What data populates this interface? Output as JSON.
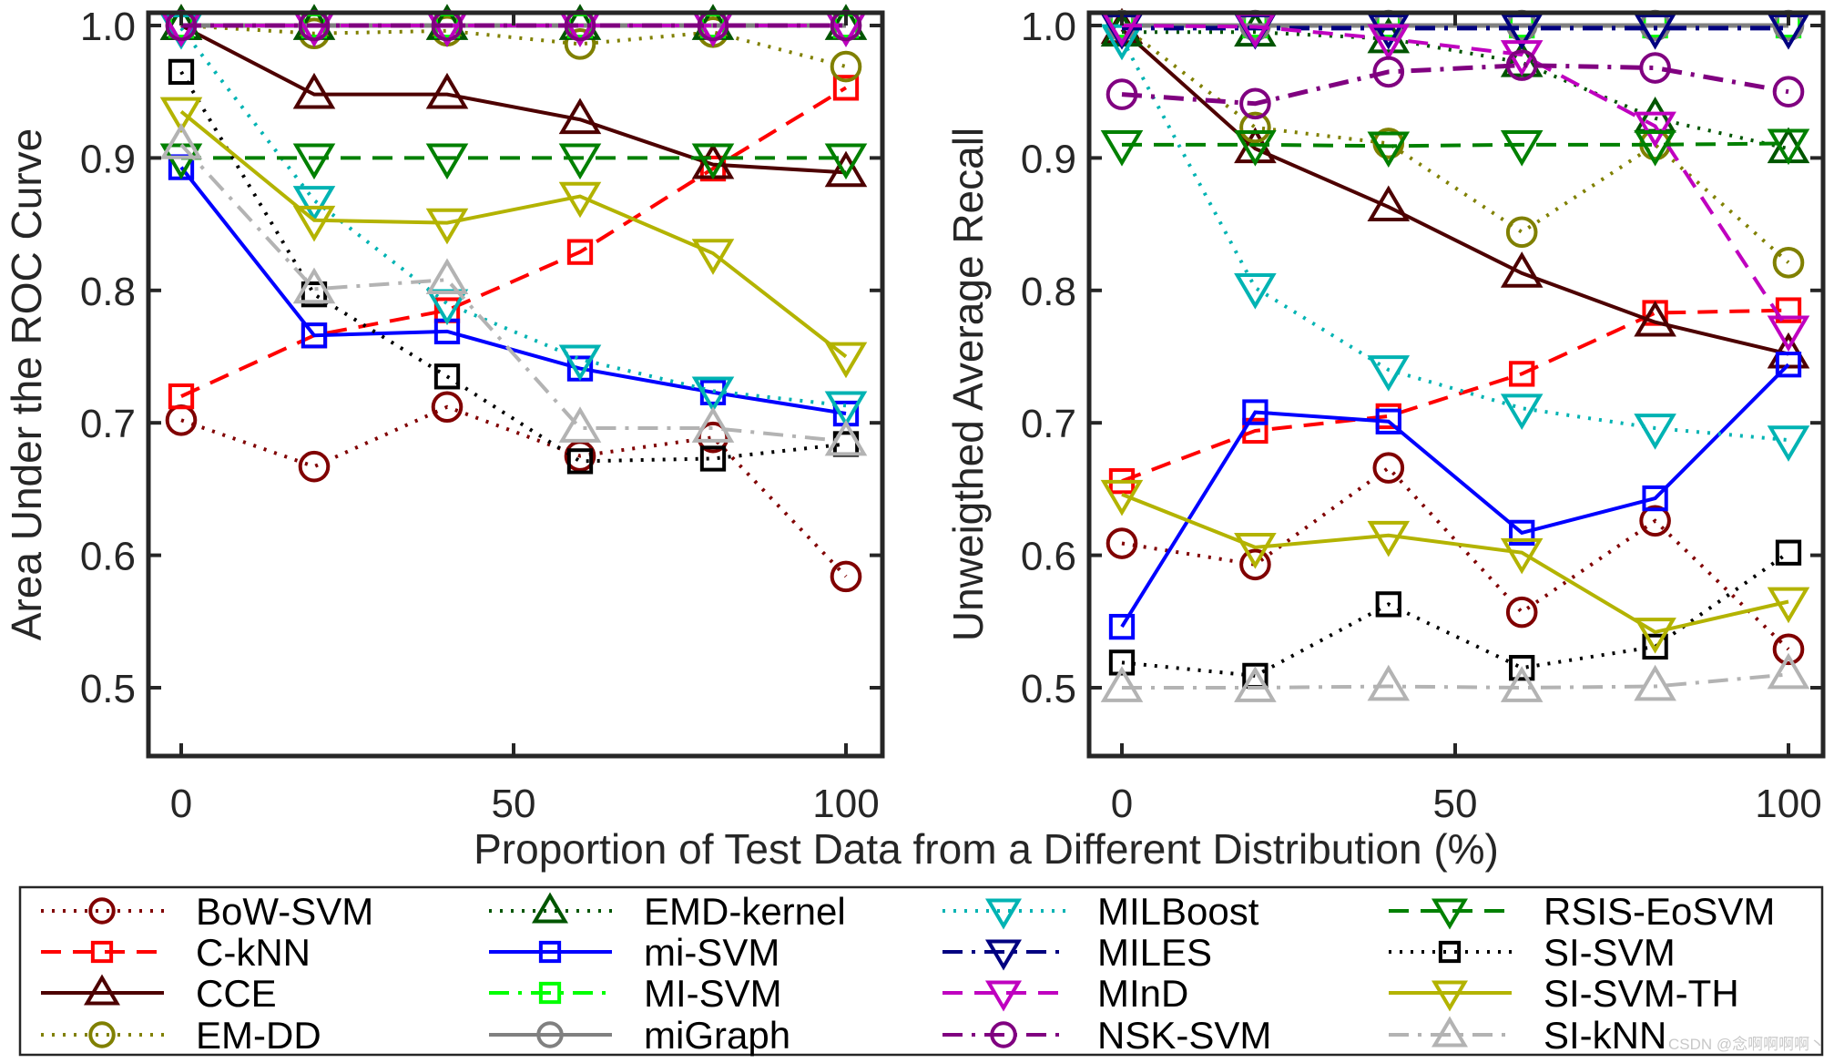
{
  "chart_data": {
    "type": "line",
    "shared_xlabel": "Proportion of Test Data from a Different Distribution (%)",
    "x": [
      0,
      20,
      40,
      60,
      80,
      100
    ],
    "xticks": [
      0,
      50,
      100
    ],
    "xlim": [
      -5,
      105
    ],
    "yticks": [
      0.5,
      0.6,
      0.7,
      0.8,
      0.9,
      1.0
    ],
    "ytick_labels": [
      "0.5",
      "0.6",
      "0.7",
      "0.8",
      "0.9",
      "1.0"
    ],
    "ylim": [
      0.45,
      1.01
    ],
    "grid": false,
    "legend_placement": "bottom",
    "legend_columns": 4,
    "series_styles": [
      {
        "name": "BoW-SVM",
        "color": "#800000",
        "dash": "dotted",
        "marker": "circle"
      },
      {
        "name": "C-kNN",
        "color": "#ff0000",
        "dash": "dashed",
        "marker": "square"
      },
      {
        "name": "CCE",
        "color": "#4d0000",
        "dash": "solid",
        "marker": "triangle-up"
      },
      {
        "name": "EM-DD",
        "color": "#808000",
        "dash": "dotted",
        "marker": "circle"
      },
      {
        "name": "EMD-kernel",
        "color": "#005500",
        "dash": "dotted",
        "marker": "triangle-up"
      },
      {
        "name": "mi-SVM",
        "color": "#0000ff",
        "dash": "solid",
        "marker": "square"
      },
      {
        "name": "MI-SVM",
        "color": "#00ff00",
        "dash": "dashdot",
        "marker": "square"
      },
      {
        "name": "miGraph",
        "color": "#808080",
        "dash": "solid",
        "marker": "circle"
      },
      {
        "name": "MILBoost",
        "color": "#00b3b3",
        "dash": "dotted",
        "marker": "triangle-down"
      },
      {
        "name": "MILES",
        "color": "#000080",
        "dash": "dashdot",
        "marker": "triangle-down"
      },
      {
        "name": "MInD",
        "color": "#bf00bf",
        "dash": "dashed",
        "marker": "triangle-down"
      },
      {
        "name": "NSK-SVM",
        "color": "#800080",
        "dash": "dashdot",
        "marker": "circle"
      },
      {
        "name": "RSIS-EoSVM",
        "color": "#008000",
        "dash": "dashed",
        "marker": "triangle-down"
      },
      {
        "name": "SI-SVM",
        "color": "#000000",
        "dash": "dotted",
        "marker": "square"
      },
      {
        "name": "SI-SVM-TH",
        "color": "#b3b300",
        "dash": "solid",
        "marker": "triangle-down"
      },
      {
        "name": "SI-kNN",
        "color": "#b3b3b3",
        "dash": "dashdot",
        "marker": "triangle-up"
      }
    ],
    "charts": [
      {
        "ylabel": "Area Under the ROC Curve",
        "series": [
          {
            "name": "BoW-SVM",
            "values": [
              0.702,
              0.667,
              0.712,
              0.675,
              0.689,
              0.584
            ]
          },
          {
            "name": "C-kNN",
            "values": [
              0.72,
              0.766,
              0.785,
              0.829,
              0.892,
              0.953
            ]
          },
          {
            "name": "CCE",
            "values": [
              1.0,
              0.948,
              0.948,
              0.929,
              0.895,
              0.889
            ]
          },
          {
            "name": "EM-DD",
            "values": [
              1.0,
              0.994,
              0.996,
              0.986,
              0.995,
              0.969
            ]
          },
          {
            "name": "EMD-kernel",
            "values": [
              1.0,
              1.0,
              1.0,
              1.0,
              1.0,
              1.0
            ]
          },
          {
            "name": "mi-SVM",
            "values": [
              0.893,
              0.766,
              0.769,
              0.741,
              0.723,
              0.707
            ]
          },
          {
            "name": "MI-SVM",
            "values": [
              1.0,
              1.0,
              1.0,
              1.0,
              1.0,
              1.0
            ]
          },
          {
            "name": "miGraph",
            "values": [
              1.0,
              1.0,
              1.0,
              1.0,
              1.0,
              1.0
            ]
          },
          {
            "name": "MILBoost",
            "values": [
              0.998,
              0.868,
              0.79,
              0.748,
              0.724,
              0.713
            ]
          },
          {
            "name": "MILES",
            "values": [
              1.0,
              1.0,
              1.0,
              1.0,
              1.0,
              1.0
            ]
          },
          {
            "name": "MInD",
            "values": [
              1.0,
              1.0,
              1.0,
              1.0,
              1.0,
              1.0
            ]
          },
          {
            "name": "NSK-SVM",
            "values": [
              1.0,
              1.0,
              1.0,
              1.0,
              1.0,
              1.0
            ]
          },
          {
            "name": "RSIS-EoSVM",
            "values": [
              0.9,
              0.9,
              0.9,
              0.9,
              0.9,
              0.9
            ]
          },
          {
            "name": "SI-SVM",
            "values": [
              0.965,
              0.797,
              0.735,
              0.671,
              0.673,
              0.684
            ]
          },
          {
            "name": "SI-SVM-TH",
            "values": [
              0.935,
              0.853,
              0.851,
              0.871,
              0.828,
              0.75
            ]
          },
          {
            "name": "SI-kNN",
            "values": [
              0.91,
              0.801,
              0.808,
              0.696,
              0.696,
              0.686
            ]
          }
        ]
      },
      {
        "ylabel": "Unweigthed Average Recall",
        "series": [
          {
            "name": "BoW-SVM",
            "values": [
              0.609,
              0.593,
              0.666,
              0.557,
              0.626,
              0.529
            ]
          },
          {
            "name": "C-kNN",
            "values": [
              0.656,
              0.694,
              0.705,
              0.737,
              0.783,
              0.785
            ]
          },
          {
            "name": "CCE",
            "values": [
              0.997,
              0.907,
              0.863,
              0.813,
              0.776,
              0.752
            ]
          },
          {
            "name": "EM-DD",
            "values": [
              1.0,
              0.923,
              0.911,
              0.844,
              0.91,
              0.821
            ]
          },
          {
            "name": "EMD-kernel",
            "values": [
              0.995,
              0.995,
              0.99,
              0.972,
              0.93,
              0.907
            ]
          },
          {
            "name": "mi-SVM",
            "values": [
              0.546,
              0.708,
              0.701,
              0.617,
              0.643,
              0.744
            ]
          },
          {
            "name": "MI-SVM",
            "values": [
              1.0,
              1.0,
              1.0,
              1.0,
              1.0,
              1.0
            ]
          },
          {
            "name": "miGraph",
            "values": [
              1.0,
              1.0,
              1.0,
              1.0,
              1.0,
              1.0
            ]
          },
          {
            "name": "MILBoost",
            "values": [
              0.99,
              0.802,
              0.74,
              0.711,
              0.696,
              0.687
            ]
          },
          {
            "name": "MILES",
            "values": [
              0.998,
              0.998,
              0.998,
              0.998,
              0.998,
              0.998
            ]
          },
          {
            "name": "MInD",
            "values": [
              1.0,
              0.999,
              0.99,
              0.978,
              0.924,
              0.77
            ]
          },
          {
            "name": "NSK-SVM",
            "values": [
              0.948,
              0.941,
              0.965,
              0.97,
              0.968,
              0.95
            ]
          },
          {
            "name": "RSIS-EoSVM",
            "values": [
              0.91,
              0.91,
              0.909,
              0.91,
              0.91,
              0.911
            ]
          },
          {
            "name": "SI-SVM",
            "values": [
              0.519,
              0.509,
              0.563,
              0.515,
              0.531,
              0.602
            ]
          },
          {
            "name": "SI-SVM-TH",
            "values": [
              0.646,
              0.606,
              0.615,
              0.602,
              0.542,
              0.565
            ]
          },
          {
            "name": "SI-kNN",
            "values": [
              0.5,
              0.5,
              0.501,
              0.5,
              0.501,
              0.51
            ]
          }
        ]
      }
    ]
  },
  "watermark": "CSDN @念啊啊啊啊丶"
}
